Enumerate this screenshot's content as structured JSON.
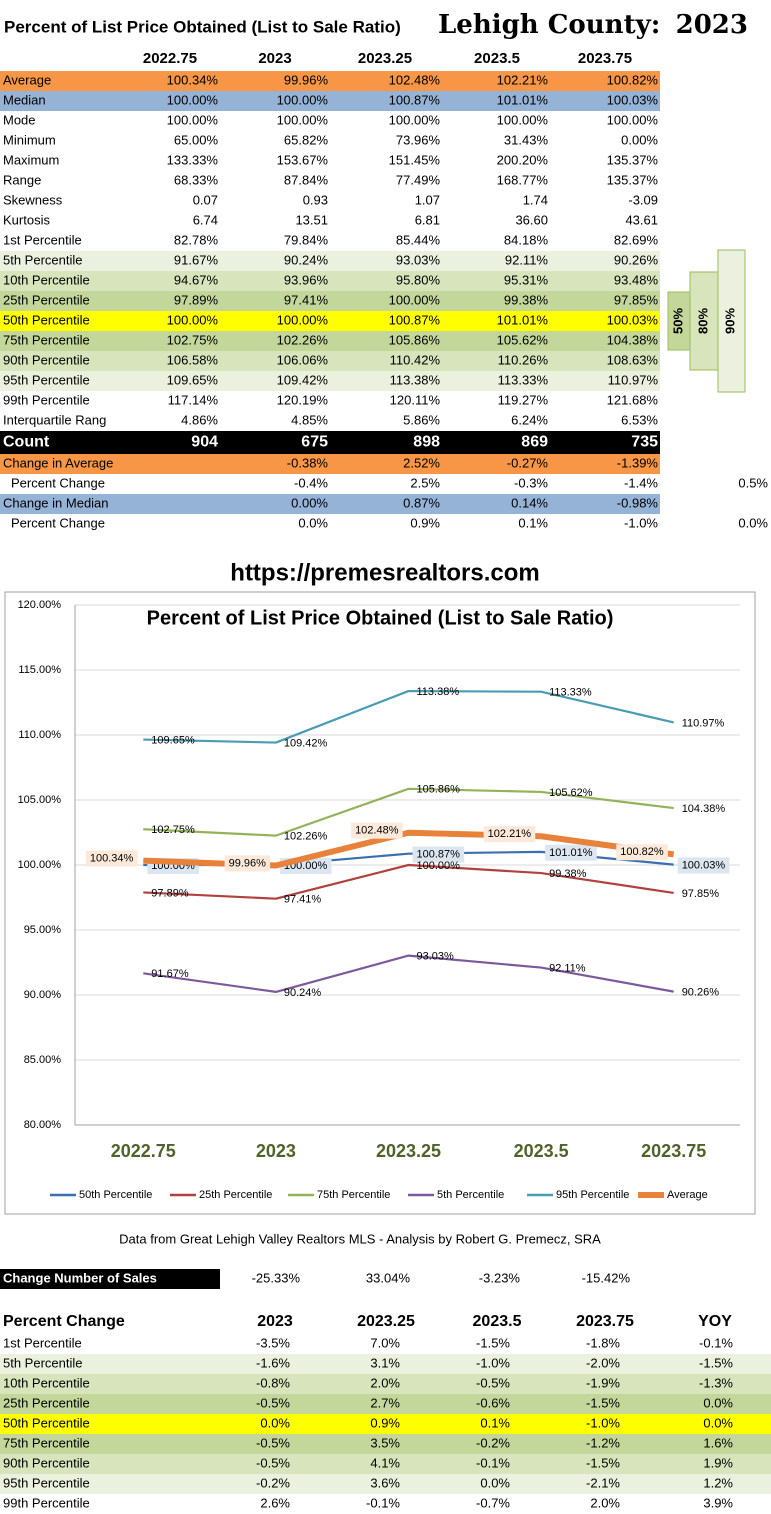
{
  "header": {
    "title": "Percent of List Price Obtained (List to Sale Ratio)",
    "county": "Lehigh County:",
    "year": "2023"
  },
  "stats_table": {
    "columns": [
      "2022.75",
      "2023",
      "2023.25",
      "2023.5",
      "2023.75"
    ],
    "rows": [
      {
        "label": "Average",
        "color": "#f79646",
        "cells": [
          "100.34%",
          "99.96%",
          "102.48%",
          "102.21%",
          "100.82%"
        ]
      },
      {
        "label": "Median",
        "color": "#95b3d7",
        "cells": [
          "100.00%",
          "100.00%",
          "100.87%",
          "101.01%",
          "100.03%"
        ]
      },
      {
        "label": "Mode",
        "cells": [
          "100.00%",
          "100.00%",
          "100.00%",
          "100.00%",
          "100.00%"
        ]
      },
      {
        "label": "Minimum",
        "cells": [
          "65.00%",
          "65.82%",
          "73.96%",
          "31.43%",
          "0.00%"
        ]
      },
      {
        "label": "Maximum",
        "cells": [
          "133.33%",
          "153.67%",
          "151.45%",
          "200.20%",
          "135.37%"
        ]
      },
      {
        "label": "Range",
        "cells": [
          "68.33%",
          "87.84%",
          "77.49%",
          "168.77%",
          "135.37%"
        ]
      },
      {
        "label": "Skewness",
        "cells": [
          "0.07",
          "0.93",
          "1.07",
          "1.74",
          "-3.09"
        ]
      },
      {
        "label": "Kurtosis",
        "cells": [
          "6.74",
          "13.51",
          "6.81",
          "36.60",
          "43.61"
        ]
      },
      {
        "label": "1st Percentile",
        "cells": [
          "82.78%",
          "79.84%",
          "85.44%",
          "84.18%",
          "82.69%"
        ]
      },
      {
        "label": "5th Percentile",
        "color": "#ebf1de",
        "cells": [
          "91.67%",
          "90.24%",
          "93.03%",
          "92.11%",
          "90.26%"
        ]
      },
      {
        "label": "10th Percentile",
        "color": "#d8e4bc",
        "cells": [
          "94.67%",
          "93.96%",
          "95.80%",
          "95.31%",
          "93.48%"
        ]
      },
      {
        "label": "25th Percentile",
        "color": "#c4d79b",
        "cells": [
          "97.89%",
          "97.41%",
          "100.00%",
          "99.38%",
          "97.85%"
        ]
      },
      {
        "label": "50th Percentile",
        "color": "#ffff00",
        "cells": [
          "100.00%",
          "100.00%",
          "100.87%",
          "101.01%",
          "100.03%"
        ]
      },
      {
        "label": "75th Percentile",
        "color": "#c4d79b",
        "cells": [
          "102.75%",
          "102.26%",
          "105.86%",
          "105.62%",
          "104.38%"
        ]
      },
      {
        "label": "90th Percentile",
        "color": "#d8e4bc",
        "cells": [
          "106.58%",
          "106.06%",
          "110.42%",
          "110.26%",
          "108.63%"
        ]
      },
      {
        "label": "95th Percentile",
        "color": "#ebf1de",
        "cells": [
          "109.65%",
          "109.42%",
          "113.38%",
          "113.33%",
          "110.97%"
        ]
      },
      {
        "label": "99th Percentile",
        "cells": [
          "117.14%",
          "120.19%",
          "120.11%",
          "119.27%",
          "121.68%"
        ]
      },
      {
        "label": "Interquartile Rang",
        "cells": [
          "4.86%",
          "4.85%",
          "5.86%",
          "6.24%",
          "6.53%"
        ]
      },
      {
        "label": "Count",
        "color": "#000000",
        "cells": [
          "904",
          "675",
          "898",
          "869",
          "735"
        ]
      },
      {
        "label": "Change in Average",
        "color": "#f79646",
        "cells": [
          "-0.38%",
          "2.52%",
          "-0.27%",
          "-1.39%"
        ]
      },
      {
        "label": "Percent Change",
        "cells": [
          "-0.4%",
          "2.5%",
          "-0.3%",
          "-1.4%"
        ],
        "extra": "0.5%"
      },
      {
        "label": "Change in Median",
        "color": "#95b3d7",
        "cells": [
          "0.00%",
          "0.87%",
          "0.14%",
          "-0.98%"
        ]
      },
      {
        "label": "Percent Change",
        "cells": [
          "0.0%",
          "0.9%",
          "0.1%",
          "-1.0%"
        ],
        "extra": "0.0%"
      }
    ]
  },
  "bands": [
    "50%",
    "80%",
    "90%"
  ],
  "url": "https://premesrealtors.com",
  "chart_data": {
    "type": "line",
    "title": "Percent of List Price Obtained (List to Sale Ratio)",
    "categories": [
      "2022.75",
      "2023",
      "2023.25",
      "2023.5",
      "2023.75"
    ],
    "ylim": [
      80,
      120
    ],
    "yticks": [
      {
        "value": 80,
        "label": "80.00%"
      },
      {
        "value": 85,
        "label": "85.00%"
      },
      {
        "value": 90,
        "label": "90.00%"
      },
      {
        "value": 95,
        "label": "95.00%"
      },
      {
        "value": 100,
        "label": "100.00%"
      },
      {
        "value": 105,
        "label": "105.00%"
      },
      {
        "value": 110,
        "label": "110.00%"
      },
      {
        "value": 115,
        "label": "115.00%"
      },
      {
        "value": 120,
        "label": "120.00%"
      }
    ],
    "grid": true,
    "legend": "bottom",
    "series": [
      {
        "name": "50th Percentile",
        "color": "#3c6fb0",
        "values": [
          100.0,
          100.0,
          100.87,
          101.01,
          100.03
        ],
        "value_labels": [
          "100.00%",
          "100.00%",
          "100.87%",
          "101.01%",
          "100.03%"
        ]
      },
      {
        "name": "25th Percentile",
        "color": "#b0413e",
        "values": [
          97.89,
          97.41,
          100.0,
          99.38,
          97.85
        ],
        "value_labels": [
          "97.89%",
          "97.41%",
          "100.00%",
          "99.38%",
          "97.85%"
        ]
      },
      {
        "name": "75th Percentile",
        "color": "#93b35a",
        "values": [
          102.75,
          102.26,
          105.86,
          105.62,
          104.38
        ],
        "value_labels": [
          "102.75%",
          "102.26%",
          "105.86%",
          "105.62%",
          "104.38%"
        ]
      },
      {
        "name": "5th Percentile",
        "color": "#7a5a9c",
        "values": [
          91.67,
          90.24,
          93.03,
          92.11,
          90.26
        ],
        "value_labels": [
          "91.67%",
          "90.24%",
          "93.03%",
          "92.11%",
          "90.26%"
        ]
      },
      {
        "name": "95th Percentile",
        "color": "#4a9cb5",
        "values": [
          109.65,
          109.42,
          113.38,
          113.33,
          110.97
        ],
        "value_labels": [
          "109.65%",
          "109.42%",
          "113.38%",
          "113.33%",
          "110.97%"
        ]
      },
      {
        "name": "Average",
        "color": "#e8823a",
        "values": [
          100.34,
          99.96,
          102.48,
          102.21,
          100.82
        ],
        "value_labels": [
          "100.34%",
          "99.96%",
          "102.48%",
          "102.21%",
          "100.82%"
        ]
      }
    ]
  },
  "source": "Data from Great Lehigh Valley Realtors MLS - Analysis by Robert G. Premecz, SRA",
  "sales_change": {
    "label": "Change Number of Sales",
    "values": [
      "-25.33%",
      "33.04%",
      "-3.23%",
      "-15.42%"
    ]
  },
  "change_table": {
    "columns": [
      "Percent Change",
      "2023",
      "2023.25",
      "2023.5",
      "2023.75",
      "YOY"
    ],
    "rows": [
      {
        "label": "1st Percentile",
        "cells": [
          "-3.5%",
          "7.0%",
          "-1.5%",
          "-1.8%",
          "-0.1%"
        ]
      },
      {
        "label": "5th Percentile",
        "color": "#ebf1de",
        "cells": [
          "-1.6%",
          "3.1%",
          "-1.0%",
          "-2.0%",
          "-1.5%"
        ]
      },
      {
        "label": "10th Percentile",
        "color": "#d8e4bc",
        "cells": [
          "-0.8%",
          "2.0%",
          "-0.5%",
          "-1.9%",
          "-1.3%"
        ]
      },
      {
        "label": "25th Percentile",
        "color": "#c4d79b",
        "cells": [
          "-0.5%",
          "2.7%",
          "-0.6%",
          "-1.5%",
          "0.0%"
        ]
      },
      {
        "label": "50th Percentile",
        "color": "#ffff00",
        "cells": [
          "0.0%",
          "0.9%",
          "0.1%",
          "-1.0%",
          "0.0%"
        ]
      },
      {
        "label": "75th Percentile",
        "color": "#c4d79b",
        "cells": [
          "-0.5%",
          "3.5%",
          "-0.2%",
          "-1.2%",
          "1.6%"
        ]
      },
      {
        "label": "90th Percentile",
        "color": "#d8e4bc",
        "cells": [
          "-0.5%",
          "4.1%",
          "-0.1%",
          "-1.5%",
          "1.9%"
        ]
      },
      {
        "label": "95th Percentile",
        "color": "#ebf1de",
        "cells": [
          "-0.2%",
          "3.6%",
          "0.0%",
          "-2.1%",
          "1.2%"
        ]
      },
      {
        "label": "99th Percentile",
        "cells": [
          "2.6%",
          "-0.1%",
          "-0.7%",
          "2.0%",
          "3.9%"
        ]
      }
    ]
  }
}
